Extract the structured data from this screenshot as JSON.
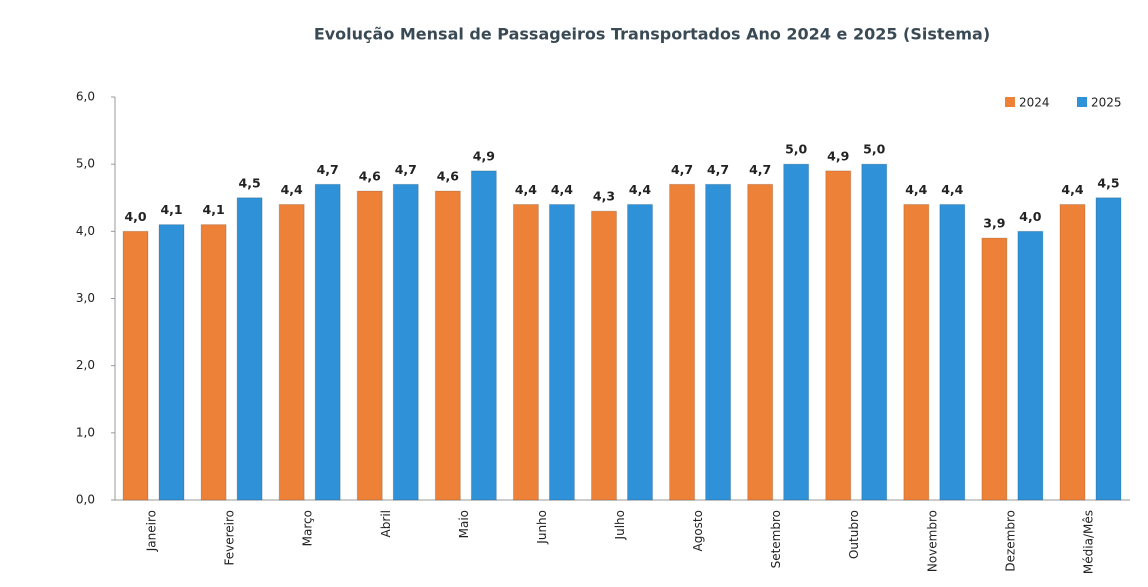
{
  "chart_data": {
    "type": "bar",
    "title": "Evolução Mensal de Passageiros Transportados Ano 2024 e 2025 (Sistema)",
    "categories": [
      "Janeiro",
      "Fevereiro",
      "Março",
      "Abril",
      "Maio",
      "Junho",
      "Julho",
      "Agosto",
      "Setembro",
      "Outubro",
      "Novembro",
      "Dezembro",
      "Média/Mês"
    ],
    "series": [
      {
        "name": "2024",
        "color": "#ed8137",
        "values": [
          4.0,
          4.1,
          4.4,
          4.6,
          4.6,
          4.4,
          4.3,
          4.7,
          4.7,
          4.9,
          4.4,
          3.9,
          4.4
        ],
        "value_labels": [
          "4,0",
          "4,1",
          "4,4",
          "4,6",
          "4,6",
          "4,4",
          "4,3",
          "4,7",
          "4,7",
          "4,9",
          "4,4",
          "3,9",
          "4,4"
        ]
      },
      {
        "name": "2025",
        "color": "#2f92d8",
        "values": [
          4.1,
          4.5,
          4.7,
          4.7,
          4.9,
          4.4,
          4.4,
          4.7,
          5.0,
          5.0,
          4.4,
          4.0,
          4.5
        ],
        "value_labels": [
          "4,1",
          "4,5",
          "4,7",
          "4,7",
          "4,9",
          "4,4",
          "4,4",
          "4,7",
          "5,0",
          "5,0",
          "4,4",
          "4,0",
          "4,5"
        ]
      }
    ],
    "ylim": [
      0,
      6
    ],
    "yticks": [
      {
        "value": 0,
        "label": "0,0"
      },
      {
        "value": 1,
        "label": "1,0"
      },
      {
        "value": 2,
        "label": "2,0"
      },
      {
        "value": 3,
        "label": "3,0"
      },
      {
        "value": 4,
        "label": "4,0"
      },
      {
        "value": 5,
        "label": "5,0"
      },
      {
        "value": 6,
        "label": "6,0"
      }
    ],
    "legend": "top-right"
  }
}
